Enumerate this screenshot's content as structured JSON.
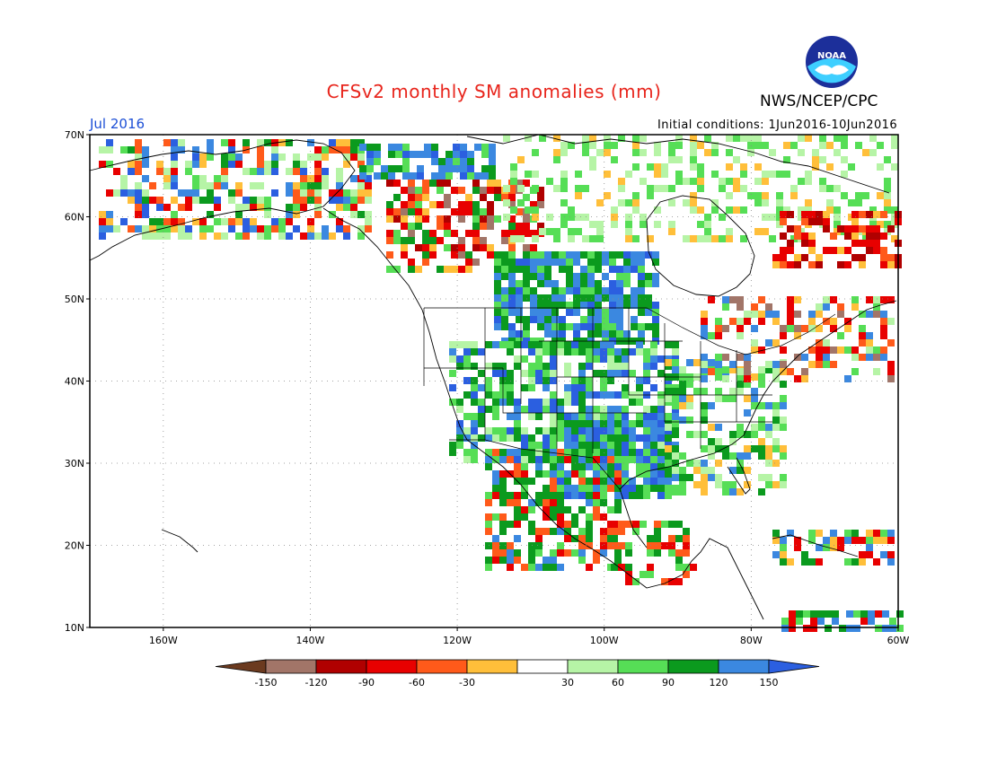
{
  "header": {
    "title": "CFSv2 monthly SM anomalies (mm)",
    "org": "NWS/NCEP/CPC",
    "month": "Jul 2016",
    "initial_conditions": "Initial conditions: 1Jun2016-10Jun2016",
    "logo_text": "NOAA"
  },
  "map": {
    "lat_labels": [
      "70N",
      "60N",
      "50N",
      "40N",
      "30N",
      "20N",
      "10N"
    ],
    "lon_labels": [
      "160W",
      "140W",
      "120W",
      "100W",
      "80W",
      "60W"
    ]
  },
  "colorbar": {
    "labels": [
      "-150",
      "-120",
      "-90",
      "-60",
      "-30",
      "30",
      "60",
      "90",
      "120",
      "150"
    ],
    "colors": [
      "#6b3a1f",
      "#a27568",
      "#b00000",
      "#e80000",
      "#ff5a1a",
      "#ffbf3a",
      "#ffffff",
      "#b6f4a6",
      "#56de56",
      "#0b9a1e",
      "#3b88e0",
      "#2b5fe0"
    ]
  }
}
